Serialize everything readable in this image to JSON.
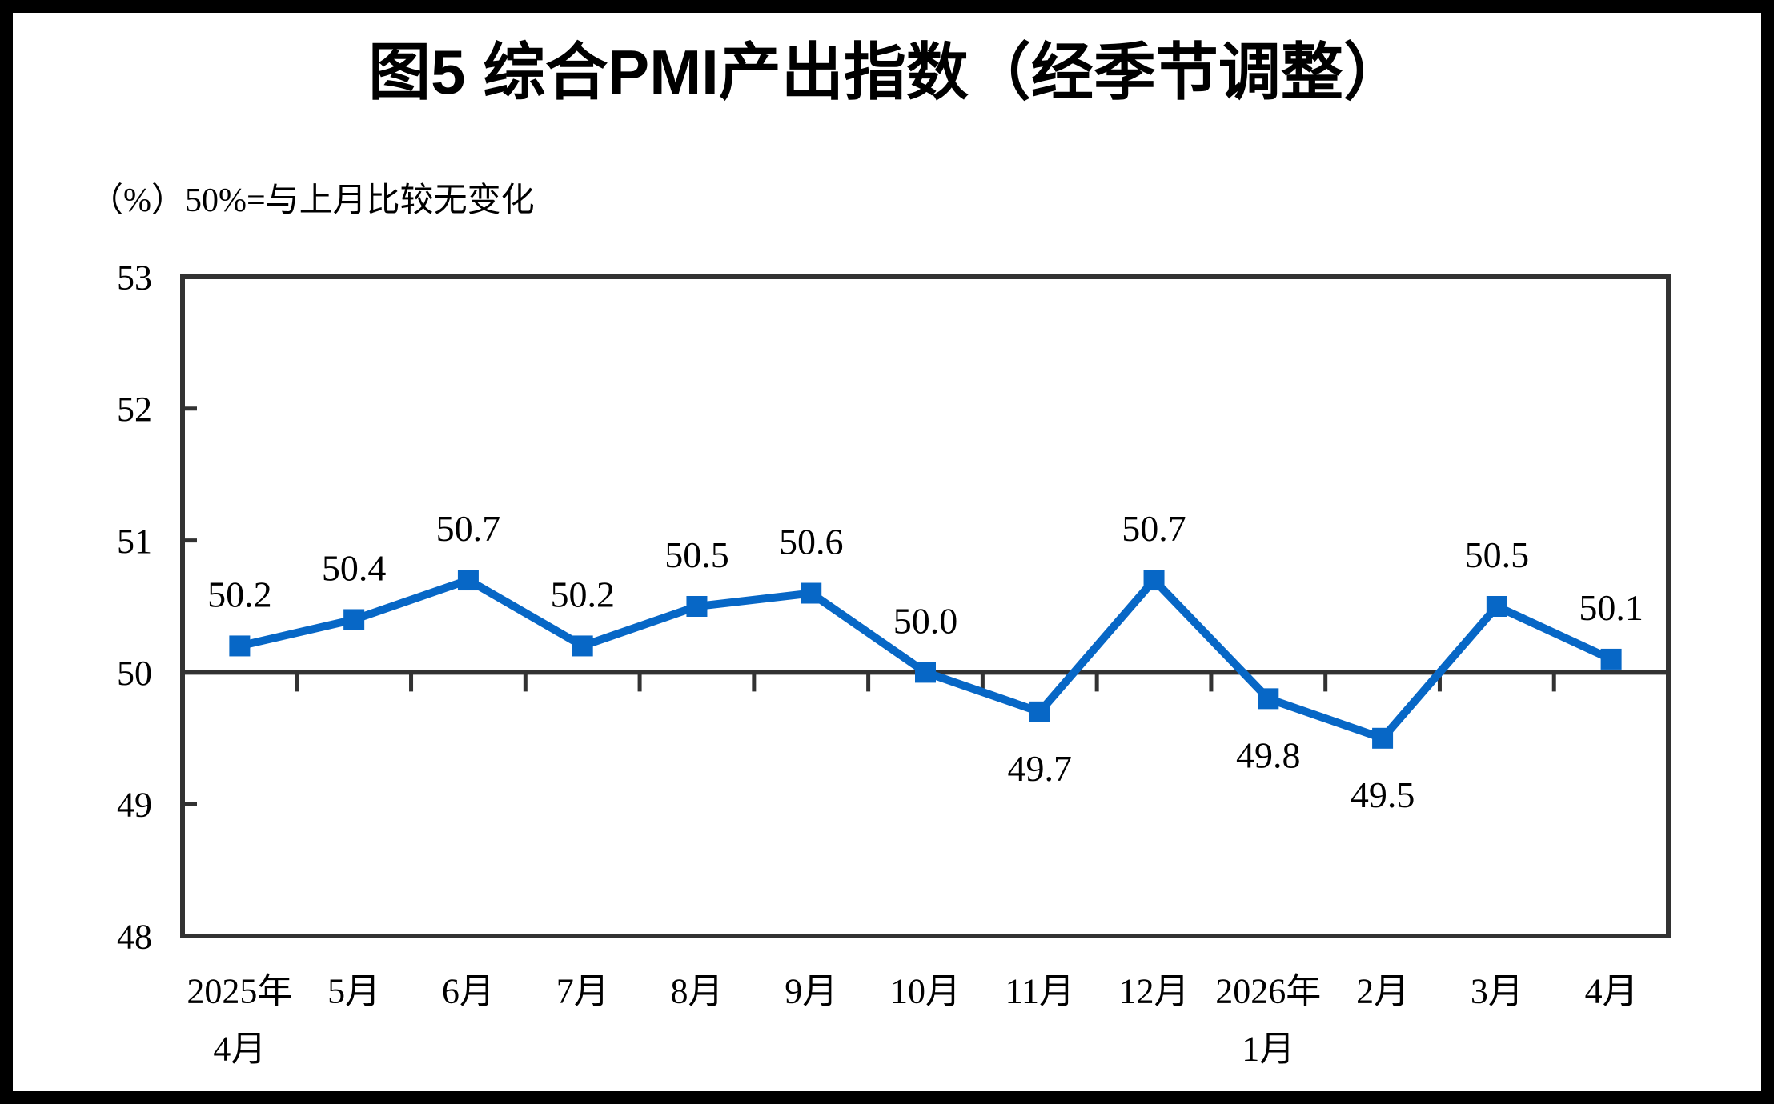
{
  "title": "图5 综合PMI产出指数（经季节调整）",
  "unit_note": "（%）50%=与上月比较无变化",
  "colors": {
    "line": "#0767c6",
    "axis": "#323232",
    "text": "#000000",
    "background": "#ffffff",
    "frame": "#000000"
  },
  "chart_data": {
    "type": "line",
    "title": "图5 综合PMI产出指数（经季节调整）",
    "unit_note": "（%）50%=与上月比较无变化",
    "categories": [
      [
        "2025年",
        "4月"
      ],
      [
        "5月"
      ],
      [
        "6月"
      ],
      [
        "7月"
      ],
      [
        "8月"
      ],
      [
        "9月"
      ],
      [
        "10月"
      ],
      [
        "11月"
      ],
      [
        "12月"
      ],
      [
        "2026年",
        "1月"
      ],
      [
        "2月"
      ],
      [
        "3月"
      ],
      [
        "4月"
      ]
    ],
    "series": [
      {
        "name": "综合PMI产出指数",
        "values": [
          50.2,
          50.4,
          50.7,
          50.2,
          50.5,
          50.6,
          50.0,
          49.7,
          50.7,
          49.8,
          49.5,
          50.5,
          50.1
        ]
      }
    ],
    "data_label_position": [
      "above",
      "above",
      "above",
      "above",
      "above",
      "above",
      "above",
      "below",
      "above",
      "below",
      "below",
      "above",
      "above"
    ],
    "ylim": [
      48,
      53
    ],
    "yticks": [
      48,
      49,
      50,
      51,
      52,
      53
    ],
    "reference_line_y": 50,
    "grid": false,
    "legend": "none",
    "marker": "square",
    "line_color": "#0767c6",
    "axis_color": "#323232"
  }
}
